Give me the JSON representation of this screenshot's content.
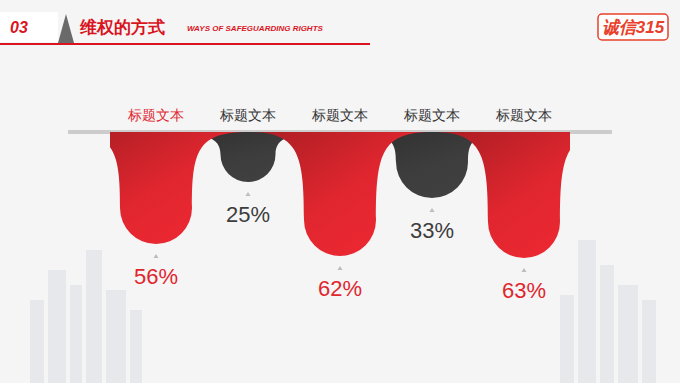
{
  "header": {
    "number": "03",
    "title": "维权的方式",
    "subtitle": "WAYS OF SAFEGUARDING RIGHTS",
    "logo": "诚信315"
  },
  "chart_data": {
    "type": "bar",
    "categories": [
      "标题文本",
      "标题文本",
      "标题文本",
      "标题文本",
      "标题文本"
    ],
    "values": [
      56,
      25,
      62,
      33,
      63
    ],
    "value_labels": [
      "56%",
      "25%",
      "62%",
      "33%",
      "63%"
    ],
    "colors": [
      "#e0262f",
      "#3d3d3d",
      "#e0262f",
      "#3d3d3d",
      "#e0262f"
    ],
    "ylim": [
      0,
      100
    ],
    "data_labels": true,
    "tick_labels": "x",
    "grid": false
  }
}
